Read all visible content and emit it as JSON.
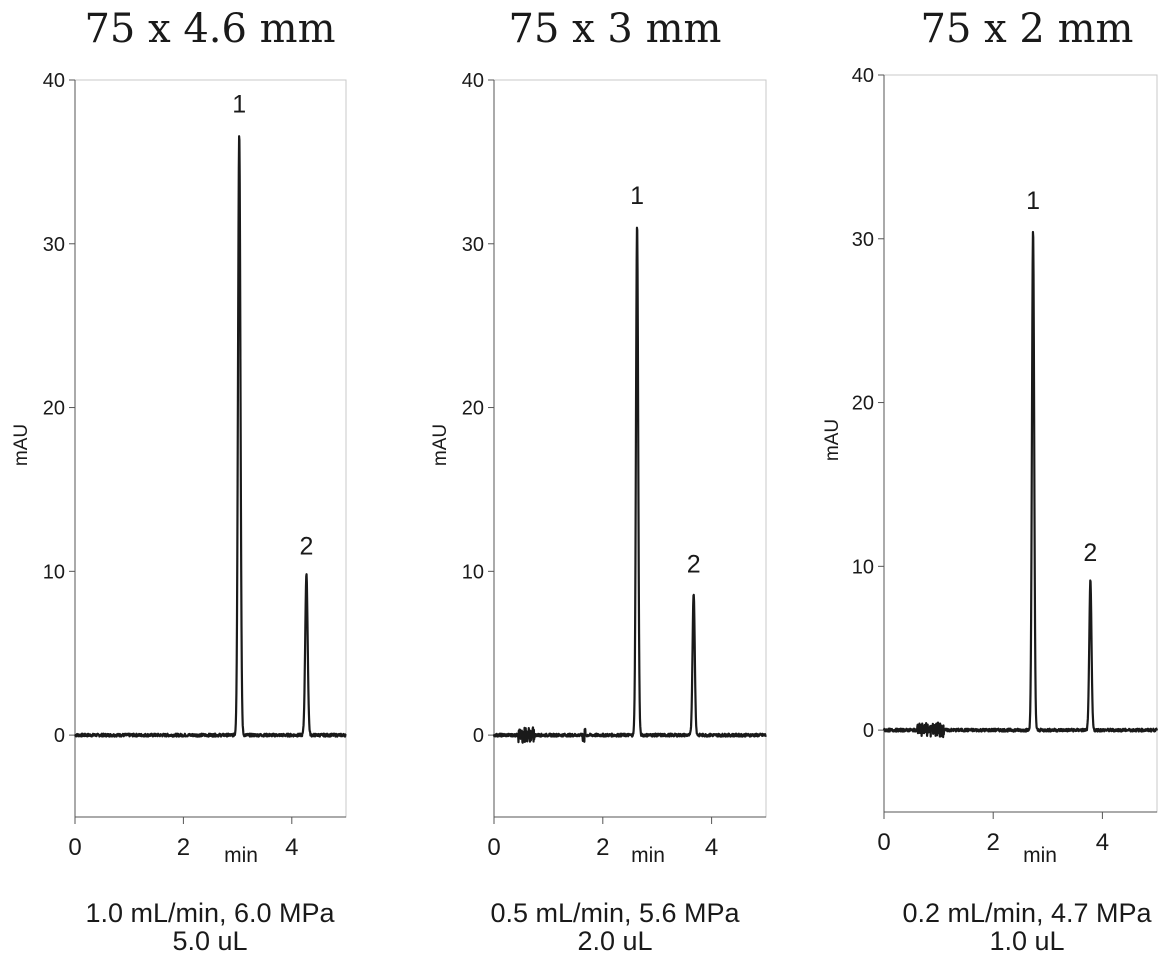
{
  "chart_data": [
    {
      "type": "line",
      "title": "75 x 4.6 mm",
      "ylabel": "mAU",
      "xlabel": "min",
      "xlim": [
        0,
        5
      ],
      "ylim": [
        -5,
        40
      ],
      "yticks": [
        "0",
        "10",
        "20",
        "30",
        "40"
      ],
      "xticks": [
        "0",
        "2",
        "4"
      ],
      "grid": false,
      "baseline": 0,
      "peaks": [
        {
          "label": "1",
          "x": 3.03,
          "y": 36.8,
          "width": 0.05
        },
        {
          "label": "2",
          "x": 4.27,
          "y": 9.8,
          "width": 0.05
        }
      ],
      "conditions": [
        "1.0 mL/min, 6.0 MPa",
        "5.0 uL"
      ]
    },
    {
      "type": "line",
      "title": "75 x 3 mm",
      "ylabel": "mAU",
      "xlabel": "min",
      "xlim": [
        0,
        5
      ],
      "ylim": [
        -5,
        40
      ],
      "yticks": [
        "0",
        "10",
        "20",
        "30",
        "40"
      ],
      "xticks": [
        "0",
        "2",
        "4"
      ],
      "grid": false,
      "baseline": 0,
      "peaks": [
        {
          "label": "1",
          "x": 2.63,
          "y": 31.2,
          "width": 0.045
        },
        {
          "label": "2",
          "x": 3.67,
          "y": 8.7,
          "width": 0.045
        }
      ],
      "conditions": [
        "0.5 mL/min, 5.6 MPa",
        "2.0 uL"
      ]
    },
    {
      "type": "line",
      "title": "75 x 2 mm",
      "ylabel": "mAU",
      "xlabel": "min",
      "xlim": [
        0,
        5
      ],
      "ylim": [
        -5,
        40
      ],
      "yticks": [
        "0",
        "10",
        "20",
        "30",
        "40"
      ],
      "xticks": [
        "0",
        "2",
        "4"
      ],
      "grid": false,
      "baseline": 0,
      "peaks": [
        {
          "label": "1",
          "x": 2.73,
          "y": 30.6,
          "width": 0.045
        },
        {
          "label": "2",
          "x": 3.78,
          "y": 9.1,
          "width": 0.045
        }
      ],
      "conditions": [
        "0.2 mL/min, 4.7 MPa",
        "1.0 uL"
      ]
    }
  ]
}
